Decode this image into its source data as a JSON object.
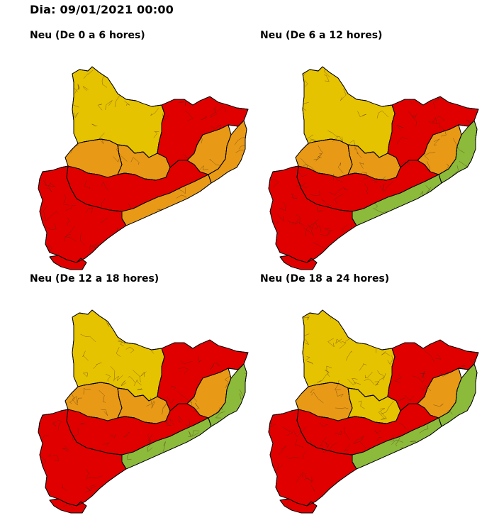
{
  "header": {
    "date_label": "Dia: 09/01/2021 00:00"
  },
  "colors": {
    "yellow": "#e6c300",
    "orange": "#e89a16",
    "red": "#e00000",
    "green": "#8cba3a",
    "border": "#4a2a1a"
  },
  "panels": [
    {
      "title": "Neu (De 0 a 6 hores)",
      "regions": {
        "north": "yellow",
        "center_west": "orange",
        "center_east": "orange",
        "northeast": "red",
        "east_inner": "orange",
        "east_coast": "orange",
        "middle": "red",
        "central_coast": "orange",
        "south": "red",
        "delta": "red"
      }
    },
    {
      "title": "Neu (De 6 a 12 hores)",
      "regions": {
        "north": "yellow",
        "center_west": "orange",
        "center_east": "orange",
        "northeast": "red",
        "east_inner": "orange",
        "east_coast": "green",
        "middle": "red",
        "central_coast": "green",
        "south": "red",
        "delta": "red"
      }
    },
    {
      "title": "Neu (De 12 a 18 hores)",
      "regions": {
        "north": "yellow",
        "center_west": "orange",
        "center_east": "orange",
        "northeast": "red",
        "east_inner": "orange",
        "east_coast": "green",
        "middle": "red",
        "central_coast": "green",
        "south": "red",
        "delta": "red"
      }
    },
    {
      "title": "Neu (De 18 a 24 hores)",
      "regions": {
        "north": "yellow",
        "center_west": "orange",
        "center_east": "yellow",
        "northeast": "red",
        "east_inner": "orange",
        "east_coast": "green",
        "middle": "red",
        "central_coast": "green",
        "south": "red",
        "delta": "red"
      }
    }
  ]
}
